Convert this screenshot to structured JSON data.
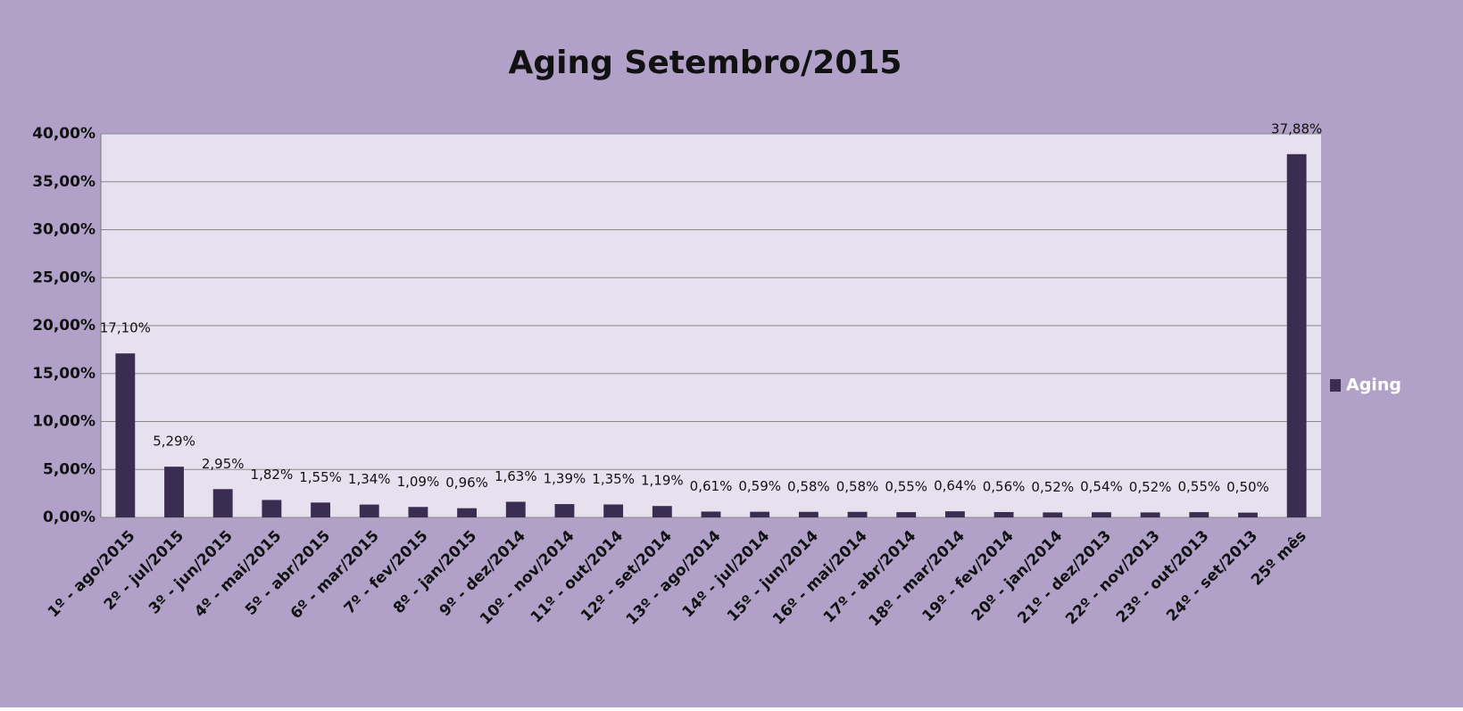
{
  "chart_data": {
    "type": "bar",
    "title": "Aging Setembro/2015",
    "categories": [
      "1º - ago/2015",
      "2º - jul/2015",
      "3º - jun/2015",
      "4º - mai/2015",
      "5º - abr/2015",
      "6º - mar/2015",
      "7º - fev/2015",
      "8º - jan/2015",
      "9º - dez/2014",
      "10º - nov/2014",
      "11º - out/2014",
      "12º - set/2014",
      "13º - ago/2014",
      "14º - jul/2014",
      "15º - jun/2014",
      "16º - mai/2014",
      "17º - abr/2014",
      "18º - mar/2014",
      "19º - fev/2014",
      "20º - jan/2014",
      "21º - dez/2013",
      "22º - nov/2013",
      "23º - out/2013",
      "24º - set/2013",
      "25º mês"
    ],
    "series": [
      {
        "name": "Aging",
        "color": "#3b2d52",
        "values": [
          17.1,
          5.29,
          2.95,
          1.82,
          1.55,
          1.34,
          1.09,
          0.96,
          1.63,
          1.39,
          1.35,
          1.19,
          0.61,
          0.59,
          0.58,
          0.58,
          0.55,
          0.64,
          0.56,
          0.52,
          0.54,
          0.52,
          0.55,
          0.5,
          37.88
        ],
        "value_labels": [
          "17,10%",
          "5,29%",
          "2,95%",
          "1,82%",
          "1,55%",
          "1,34%",
          "1,09%",
          "0,96%",
          "1,63%",
          "1,39%",
          "1,35%",
          "1,19%",
          "0,61%",
          "0,59%",
          "0,58%",
          "0,58%",
          "0,55%",
          "0,64%",
          "0,56%",
          "0,52%",
          "0,54%",
          "0,52%",
          "0,55%",
          "0,50%",
          "37,88%"
        ]
      }
    ],
    "ylim": [
      0,
      40
    ],
    "yticks": [
      {
        "value": 0,
        "label": "0,00%"
      },
      {
        "value": 5,
        "label": "5,00%"
      },
      {
        "value": 10,
        "label": "10,00%"
      },
      {
        "value": 15,
        "label": "15,00%"
      },
      {
        "value": 20,
        "label": "20,00%"
      },
      {
        "value": 25,
        "label": "25,00%"
      },
      {
        "value": 30,
        "label": "30,00%"
      },
      {
        "value": 35,
        "label": "35,00%"
      },
      {
        "value": 40,
        "label": "40,00%"
      }
    ],
    "grid": true,
    "legend": "right"
  }
}
